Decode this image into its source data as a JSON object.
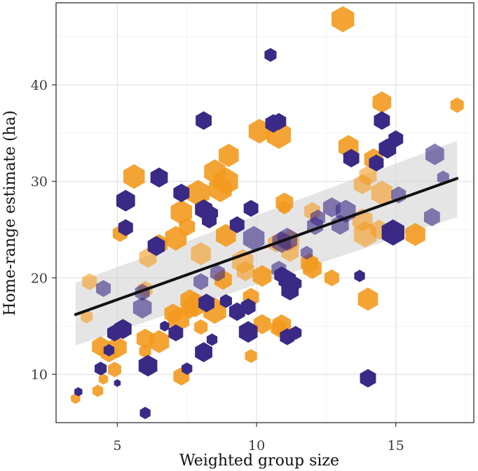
{
  "chart_data": {
    "type": "scatter",
    "title": "",
    "xlabel": "Weighted group size",
    "ylabel": "Home-range estimate (ha)",
    "xlim": [
      2.8,
      17.8
    ],
    "ylim": [
      5,
      48.5
    ],
    "xticks": [
      5,
      10,
      15
    ],
    "xtick_labels": [
      "5",
      "10",
      "15"
    ],
    "yticks": [
      10,
      20,
      30,
      40
    ],
    "ytick_labels": [
      "10",
      "20",
      "30",
      "40"
    ],
    "grid": true,
    "marker": "hexagon",
    "colors": {
      "orange": "#f39a1e",
      "purple": "#3a2a86",
      "fit_line": "#111111",
      "ribbon": "#d3d3d3"
    },
    "fit": {
      "x": [
        3.5,
        17.2
      ],
      "y": [
        16.2,
        30.3
      ],
      "ci_lower": [
        13.0,
        26.3
      ],
      "ci_upper": [
        19.5,
        34.2
      ]
    },
    "series": [
      {
        "name": "orange",
        "points": [
          {
            "x": 13.1,
            "y": 46.8,
            "s": 1.7,
            "a": 0.9
          },
          {
            "x": 17.2,
            "y": 37.9,
            "s": 1.0,
            "a": 0.9
          },
          {
            "x": 14.5,
            "y": 38.2,
            "s": 1.4,
            "a": 0.9
          },
          {
            "x": 10.1,
            "y": 35.2,
            "s": 1.6,
            "a": 0.9
          },
          {
            "x": 10.8,
            "y": 34.8,
            "s": 1.8,
            "a": 0.9
          },
          {
            "x": 9.0,
            "y": 32.7,
            "s": 1.5,
            "a": 0.9
          },
          {
            "x": 13.3,
            "y": 33.6,
            "s": 1.5,
            "a": 0.9
          },
          {
            "x": 14.2,
            "y": 32.3,
            "s": 1.4,
            "a": 0.9
          },
          {
            "x": 8.5,
            "y": 31.0,
            "s": 1.6,
            "a": 0.9
          },
          {
            "x": 8.9,
            "y": 30.0,
            "s": 1.8,
            "a": 0.9
          },
          {
            "x": 8.7,
            "y": 29.2,
            "s": 1.7,
            "a": 0.9
          },
          {
            "x": 5.6,
            "y": 30.5,
            "s": 1.6,
            "a": 0.9
          },
          {
            "x": 7.9,
            "y": 28.8,
            "s": 1.7,
            "a": 0.9
          },
          {
            "x": 7.3,
            "y": 26.8,
            "s": 1.6,
            "a": 0.9
          },
          {
            "x": 11.0,
            "y": 27.8,
            "s": 1.3,
            "a": 0.9
          },
          {
            "x": 11.0,
            "y": 27.3,
            "s": 0.9,
            "a": 0.9
          },
          {
            "x": 14.0,
            "y": 30.6,
            "s": 1.3,
            "a": 0.6
          },
          {
            "x": 13.8,
            "y": 29.7,
            "s": 1.3,
            "a": 0.6
          },
          {
            "x": 14.5,
            "y": 28.8,
            "s": 1.6,
            "a": 0.6
          },
          {
            "x": 13.8,
            "y": 26.0,
            "s": 1.5,
            "a": 0.6
          },
          {
            "x": 14.4,
            "y": 25.0,
            "s": 1.3,
            "a": 0.6
          },
          {
            "x": 13.9,
            "y": 24.5,
            "s": 1.7,
            "a": 0.6
          },
          {
            "x": 15.7,
            "y": 24.5,
            "s": 1.5,
            "a": 0.9
          },
          {
            "x": 7.5,
            "y": 25.3,
            "s": 1.2,
            "a": 0.9
          },
          {
            "x": 5.1,
            "y": 24.6,
            "s": 1.1,
            "a": 0.9
          },
          {
            "x": 7.1,
            "y": 24.1,
            "s": 1.6,
            "a": 0.9
          },
          {
            "x": 8.9,
            "y": 24.4,
            "s": 1.5,
            "a": 0.9
          },
          {
            "x": 6.5,
            "y": 23.5,
            "s": 1.3,
            "a": 0.9
          },
          {
            "x": 8.0,
            "y": 22.5,
            "s": 1.5,
            "a": 0.6
          },
          {
            "x": 6.1,
            "y": 22.1,
            "s": 1.3,
            "a": 0.6
          },
          {
            "x": 9.5,
            "y": 21.7,
            "s": 1.6,
            "a": 0.6
          },
          {
            "x": 9.6,
            "y": 20.7,
            "s": 1.3,
            "a": 0.6
          },
          {
            "x": 10.7,
            "y": 23.6,
            "s": 1.2,
            "a": 0.6
          },
          {
            "x": 11.2,
            "y": 23.9,
            "s": 1.4,
            "a": 0.6
          },
          {
            "x": 11.2,
            "y": 22.7,
            "s": 1.3,
            "a": 0.6
          },
          {
            "x": 12.0,
            "y": 26.9,
            "s": 1.2,
            "a": 0.6
          },
          {
            "x": 11.9,
            "y": 21.5,
            "s": 1.3,
            "a": 0.9
          },
          {
            "x": 12.0,
            "y": 21.0,
            "s": 1.4,
            "a": 0.9
          },
          {
            "x": 10.2,
            "y": 20.2,
            "s": 1.4,
            "a": 0.9
          },
          {
            "x": 8.8,
            "y": 19.8,
            "s": 1.3,
            "a": 0.9
          },
          {
            "x": 12.7,
            "y": 20.0,
            "s": 1.1,
            "a": 0.9
          },
          {
            "x": 14.0,
            "y": 17.8,
            "s": 1.5,
            "a": 0.9
          },
          {
            "x": 9.8,
            "y": 18.0,
            "s": 1.2,
            "a": 0.9
          },
          {
            "x": 4.0,
            "y": 19.6,
            "s": 1.1,
            "a": 0.6
          },
          {
            "x": 6.0,
            "y": 18.8,
            "s": 1.1,
            "a": 0.6
          },
          {
            "x": 7.6,
            "y": 17.7,
            "s": 1.4,
            "a": 0.9
          },
          {
            "x": 7.8,
            "y": 17.2,
            "s": 1.6,
            "a": 0.9
          },
          {
            "x": 7.6,
            "y": 16.8,
            "s": 1.3,
            "a": 0.9
          },
          {
            "x": 8.5,
            "y": 16.6,
            "s": 1.7,
            "a": 0.9
          },
          {
            "x": 7.0,
            "y": 16.3,
            "s": 1.3,
            "a": 0.9
          },
          {
            "x": 7.2,
            "y": 15.7,
            "s": 1.6,
            "a": 0.9
          },
          {
            "x": 3.9,
            "y": 16.0,
            "s": 0.9,
            "a": 0.6
          },
          {
            "x": 10.9,
            "y": 15.1,
            "s": 1.4,
            "a": 0.9
          },
          {
            "x": 10.2,
            "y": 15.2,
            "s": 1.3,
            "a": 0.9
          },
          {
            "x": 10.8,
            "y": 14.8,
            "s": 1.2,
            "a": 0.9
          },
          {
            "x": 8.0,
            "y": 14.9,
            "s": 1.0,
            "a": 0.9
          },
          {
            "x": 6.0,
            "y": 13.7,
            "s": 1.3,
            "a": 0.9
          },
          {
            "x": 6.5,
            "y": 13.4,
            "s": 1.5,
            "a": 0.9
          },
          {
            "x": 4.4,
            "y": 12.9,
            "s": 1.3,
            "a": 0.9
          },
          {
            "x": 4.7,
            "y": 12.2,
            "s": 1.2,
            "a": 0.9
          },
          {
            "x": 5.0,
            "y": 12.8,
            "s": 1.4,
            "a": 0.9
          },
          {
            "x": 6.0,
            "y": 12.4,
            "s": 0.9,
            "a": 0.9
          },
          {
            "x": 9.8,
            "y": 11.9,
            "s": 0.9,
            "a": 0.9
          },
          {
            "x": 4.9,
            "y": 10.5,
            "s": 1.0,
            "a": 0.9
          },
          {
            "x": 7.3,
            "y": 9.8,
            "s": 1.2,
            "a": 0.9
          },
          {
            "x": 4.5,
            "y": 9.5,
            "s": 0.7,
            "a": 0.9
          },
          {
            "x": 4.3,
            "y": 8.3,
            "s": 0.8,
            "a": 0.9
          },
          {
            "x": 3.5,
            "y": 7.5,
            "s": 0.7,
            "a": 0.9
          }
        ]
      },
      {
        "name": "purple",
        "points": [
          {
            "x": 10.5,
            "y": 43.1,
            "s": 0.9,
            "a": 1.0
          },
          {
            "x": 8.1,
            "y": 36.3,
            "s": 1.2,
            "a": 1.0
          },
          {
            "x": 10.6,
            "y": 36.0,
            "s": 1.2,
            "a": 1.0
          },
          {
            "x": 10.8,
            "y": 36.2,
            "s": 1.1,
            "a": 1.0
          },
          {
            "x": 14.5,
            "y": 36.3,
            "s": 1.2,
            "a": 1.0
          },
          {
            "x": 15.0,
            "y": 34.4,
            "s": 1.1,
            "a": 1.0
          },
          {
            "x": 14.7,
            "y": 33.4,
            "s": 1.3,
            "a": 1.0
          },
          {
            "x": 13.4,
            "y": 32.4,
            "s": 1.2,
            "a": 1.0
          },
          {
            "x": 14.3,
            "y": 31.9,
            "s": 1.1,
            "a": 1.0
          },
          {
            "x": 16.4,
            "y": 32.8,
            "s": 1.4,
            "a": 0.6
          },
          {
            "x": 16.7,
            "y": 30.4,
            "s": 0.9,
            "a": 0.6
          },
          {
            "x": 6.5,
            "y": 30.4,
            "s": 1.3,
            "a": 1.0
          },
          {
            "x": 7.3,
            "y": 28.8,
            "s": 1.2,
            "a": 1.0
          },
          {
            "x": 5.3,
            "y": 28.0,
            "s": 1.4,
            "a": 1.0
          },
          {
            "x": 8.1,
            "y": 27.1,
            "s": 1.3,
            "a": 1.0
          },
          {
            "x": 8.4,
            "y": 26.7,
            "s": 0.9,
            "a": 1.0
          },
          {
            "x": 9.8,
            "y": 27.2,
            "s": 1.1,
            "a": 1.0
          },
          {
            "x": 8.3,
            "y": 26.0,
            "s": 1.1,
            "a": 1.0
          },
          {
            "x": 12.7,
            "y": 27.3,
            "s": 1.3,
            "a": 0.6
          },
          {
            "x": 13.2,
            "y": 26.9,
            "s": 1.5,
            "a": 0.6
          },
          {
            "x": 12.2,
            "y": 26.2,
            "s": 1.1,
            "a": 0.6
          },
          {
            "x": 15.1,
            "y": 28.6,
            "s": 1.1,
            "a": 0.6
          },
          {
            "x": 16.3,
            "y": 26.3,
            "s": 1.2,
            "a": 0.6
          },
          {
            "x": 12.1,
            "y": 25.4,
            "s": 1.2,
            "a": 0.6
          },
          {
            "x": 13.0,
            "y": 25.5,
            "s": 1.3,
            "a": 0.6
          },
          {
            "x": 14.9,
            "y": 24.7,
            "s": 1.7,
            "a": 1.0
          },
          {
            "x": 5.3,
            "y": 25.2,
            "s": 1.1,
            "a": 1.0
          },
          {
            "x": 9.3,
            "y": 25.5,
            "s": 1.1,
            "a": 1.0
          },
          {
            "x": 9.9,
            "y": 24.1,
            "s": 1.6,
            "a": 0.6
          },
          {
            "x": 11.1,
            "y": 24.0,
            "s": 1.5,
            "a": 0.6
          },
          {
            "x": 10.9,
            "y": 23.7,
            "s": 1.4,
            "a": 0.6
          },
          {
            "x": 6.4,
            "y": 23.3,
            "s": 1.3,
            "a": 1.0
          },
          {
            "x": 11.8,
            "y": 22.6,
            "s": 0.9,
            "a": 0.6
          },
          {
            "x": 10.8,
            "y": 20.9,
            "s": 1.1,
            "a": 0.6
          },
          {
            "x": 10.9,
            "y": 20.3,
            "s": 1.1,
            "a": 1.0
          },
          {
            "x": 11.1,
            "y": 19.8,
            "s": 1.3,
            "a": 1.0
          },
          {
            "x": 11.2,
            "y": 18.7,
            "s": 1.3,
            "a": 1.0
          },
          {
            "x": 11.4,
            "y": 19.4,
            "s": 0.9,
            "a": 1.0
          },
          {
            "x": 13.7,
            "y": 20.2,
            "s": 0.8,
            "a": 1.0
          },
          {
            "x": 8.6,
            "y": 20.5,
            "s": 1.1,
            "a": 0.6
          },
          {
            "x": 8.0,
            "y": 19.6,
            "s": 1.1,
            "a": 0.6
          },
          {
            "x": 4.5,
            "y": 18.9,
            "s": 1.1,
            "a": 0.6
          },
          {
            "x": 5.9,
            "y": 18.5,
            "s": 1.1,
            "a": 0.6
          },
          {
            "x": 8.2,
            "y": 17.4,
            "s": 1.2,
            "a": 1.0
          },
          {
            "x": 5.9,
            "y": 16.9,
            "s": 1.4,
            "a": 0.6
          },
          {
            "x": 8.9,
            "y": 17.6,
            "s": 0.9,
            "a": 1.0
          },
          {
            "x": 9.3,
            "y": 16.5,
            "s": 1.2,
            "a": 1.0
          },
          {
            "x": 9.7,
            "y": 17.0,
            "s": 1.1,
            "a": 1.0
          },
          {
            "x": 6.7,
            "y": 15.0,
            "s": 0.7,
            "a": 1.0
          },
          {
            "x": 7.1,
            "y": 14.3,
            "s": 1.1,
            "a": 1.0
          },
          {
            "x": 5.2,
            "y": 14.7,
            "s": 1.3,
            "a": 1.0
          },
          {
            "x": 4.9,
            "y": 14.3,
            "s": 1.1,
            "a": 1.0
          },
          {
            "x": 9.7,
            "y": 14.4,
            "s": 1.4,
            "a": 1.0
          },
          {
            "x": 11.1,
            "y": 13.9,
            "s": 1.1,
            "a": 1.0
          },
          {
            "x": 11.4,
            "y": 14.3,
            "s": 0.9,
            "a": 1.0
          },
          {
            "x": 8.4,
            "y": 13.6,
            "s": 0.8,
            "a": 1.0
          },
          {
            "x": 8.1,
            "y": 12.3,
            "s": 1.3,
            "a": 1.0
          },
          {
            "x": 4.7,
            "y": 12.5,
            "s": 0.8,
            "a": 1.0
          },
          {
            "x": 6.1,
            "y": 10.9,
            "s": 1.4,
            "a": 1.0
          },
          {
            "x": 4.4,
            "y": 10.6,
            "s": 0.9,
            "a": 1.0
          },
          {
            "x": 7.5,
            "y": 10.6,
            "s": 0.8,
            "a": 1.0
          },
          {
            "x": 5.0,
            "y": 9.1,
            "s": 0.5,
            "a": 1.0
          },
          {
            "x": 14.0,
            "y": 9.6,
            "s": 1.2,
            "a": 1.0
          },
          {
            "x": 3.6,
            "y": 8.2,
            "s": 0.6,
            "a": 1.0
          },
          {
            "x": 6.0,
            "y": 6.0,
            "s": 0.8,
            "a": 1.0
          }
        ]
      }
    ]
  }
}
